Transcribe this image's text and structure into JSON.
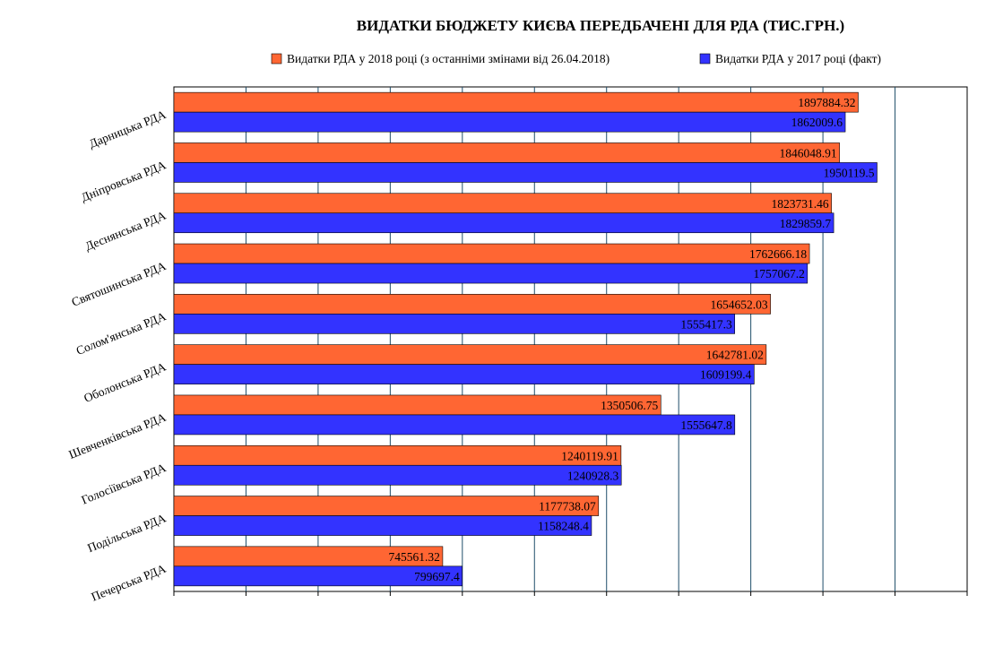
{
  "chart_data": {
    "type": "bar",
    "orientation": "horizontal",
    "title": "ВИДАТКИ БЮДЖЕТУ КИЄВА ПЕРЕДБАЧЕНІ ДЛЯ РДА (ТИС.ГРН.)",
    "xlabel": "",
    "ylabel": "",
    "xlim": [
      0,
      2200000
    ],
    "grid": true,
    "legend_position": "top",
    "categories": [
      "Дарницька РДА",
      "Дніпровська РДА",
      "Деснянська РДА",
      "Святошинська РДА",
      "Солом'янська РДА",
      "Оболонська РДА",
      "Шевченківська РДА",
      "Голосіївська РДА",
      "Подільська РДА",
      "Печерська РДА"
    ],
    "series": [
      {
        "name": "Видатки РДА у 2018 році (з останніми змінами від 26.04.2018)",
        "color": "#ff6633",
        "values": [
          1897884.32,
          1846048.91,
          1823731.46,
          1762666.18,
          1654652.03,
          1642781.02,
          1350506.75,
          1240119.91,
          1177738.07,
          745561.32
        ],
        "labels": [
          "1897884.32",
          "1846048.91",
          "1823731.46",
          "1762666.18",
          "1654652.03",
          "1642781.02",
          "1350506.75",
          "1240119.91",
          "1177738.07",
          "745561.32"
        ]
      },
      {
        "name": "Видатки РДА у 2017 році (факт)",
        "color": "#3333ff",
        "values": [
          1862009.6,
          1950119.5,
          1829859.7,
          1757067.2,
          1555417.3,
          1609199.4,
          1555647.8,
          1240928.3,
          1158248.4,
          799697.4
        ],
        "labels": [
          "1862009.6",
          "1950119.5",
          "1829859.7",
          "1757067.2",
          "1555417.3",
          "1609199.4",
          "1555647.8",
          "1240928.3",
          "1158248.4",
          "799697.4"
        ]
      }
    ]
  }
}
